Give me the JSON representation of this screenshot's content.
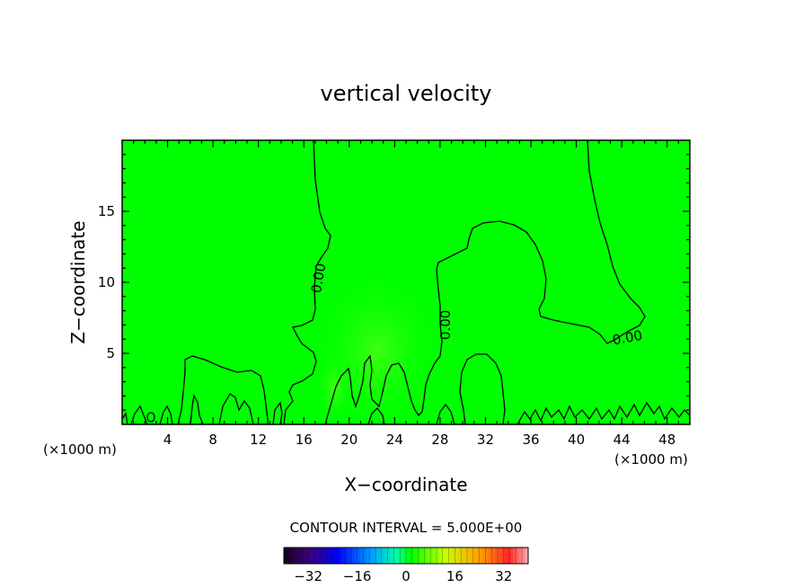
{
  "chart_data": {
    "type": "contour",
    "title": "vertical velocity",
    "xlabel": "X−coordinate",
    "ylabel": "Z−coordinate",
    "x_unit": "(×1000 m)",
    "x_unit_right": "(×1000 m)",
    "xlim": [
      0,
      50
    ],
    "ylim": [
      0,
      20
    ],
    "xticks": [
      {
        "value": 4,
        "label": "4"
      },
      {
        "value": 8,
        "label": "8"
      },
      {
        "value": 12,
        "label": "12"
      },
      {
        "value": 16,
        "label": "16"
      },
      {
        "value": 20,
        "label": "20"
      },
      {
        "value": 24,
        "label": "24"
      },
      {
        "value": 28,
        "label": "28"
      },
      {
        "value": 32,
        "label": "32"
      },
      {
        "value": 36,
        "label": "36"
      },
      {
        "value": 40,
        "label": "40"
      },
      {
        "value": 44,
        "label": "44"
      },
      {
        "value": 48,
        "label": "48"
      }
    ],
    "yticks": [
      {
        "value": 5,
        "label": "5"
      },
      {
        "value": 10,
        "label": "10"
      },
      {
        "value": 15,
        "label": "15"
      }
    ],
    "contour_labels": [
      {
        "text": "0.00",
        "x": 17.3,
        "y": 10.3,
        "rotate": -80
      },
      {
        "text": "0.00",
        "x": 28.5,
        "y": 7.0,
        "rotate": -90
      },
      {
        "text": "0.00",
        "x": 44.5,
        "y": 6.1,
        "rotate": -10
      }
    ],
    "contour_interval_text": "CONTOUR INTERVAL = 5.000E+00",
    "colorbar": {
      "range": [
        -40,
        40
      ],
      "ticks": [
        {
          "value": -32,
          "label": "−32"
        },
        {
          "value": -16,
          "label": "−16"
        },
        {
          "value": 0,
          "label": "0"
        },
        {
          "value": 16,
          "label": "16"
        },
        {
          "value": 32,
          "label": "32"
        }
      ]
    },
    "field_color": "#00ff00"
  }
}
